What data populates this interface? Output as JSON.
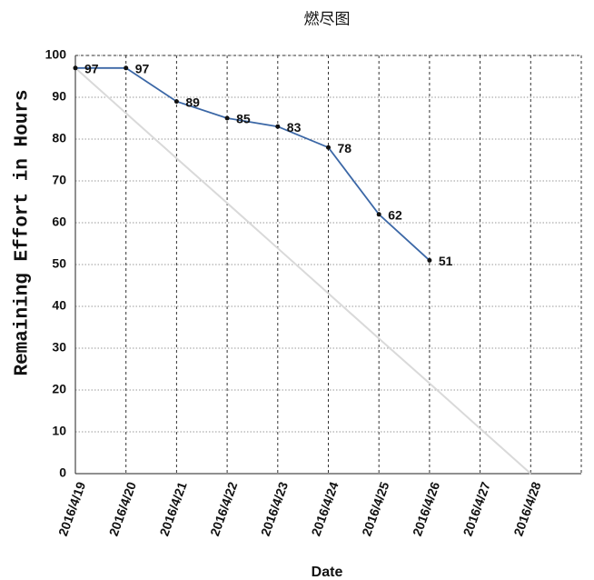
{
  "chart_data": {
    "type": "line",
    "title": "燃尽图",
    "xlabel": "Date",
    "ylabel": "Remaining Effort in Hours",
    "categories": [
      "2016/4/19",
      "2016/4/20",
      "2016/4/21",
      "2016/4/22",
      "2016/4/23",
      "2016/4/24",
      "2016/4/25",
      "2016/4/26",
      "2016/4/27",
      "2016/4/28"
    ],
    "series": [
      {
        "color": "#d9d9d9",
        "values": [
          97,
          86.2,
          75.4,
          64.7,
          53.9,
          43.1,
          32.3,
          21.6,
          10.8,
          0
        ]
      },
      {
        "color": "#3b67a6",
        "values": [
          97,
          97,
          89,
          85,
          83,
          78,
          62,
          51,
          null,
          null
        ],
        "data_labels": true
      }
    ],
    "ylim": [
      0,
      100
    ],
    "yticks": [
      0,
      10,
      20,
      30,
      40,
      50,
      60,
      70,
      80,
      90,
      100
    ],
    "grid": true
  }
}
